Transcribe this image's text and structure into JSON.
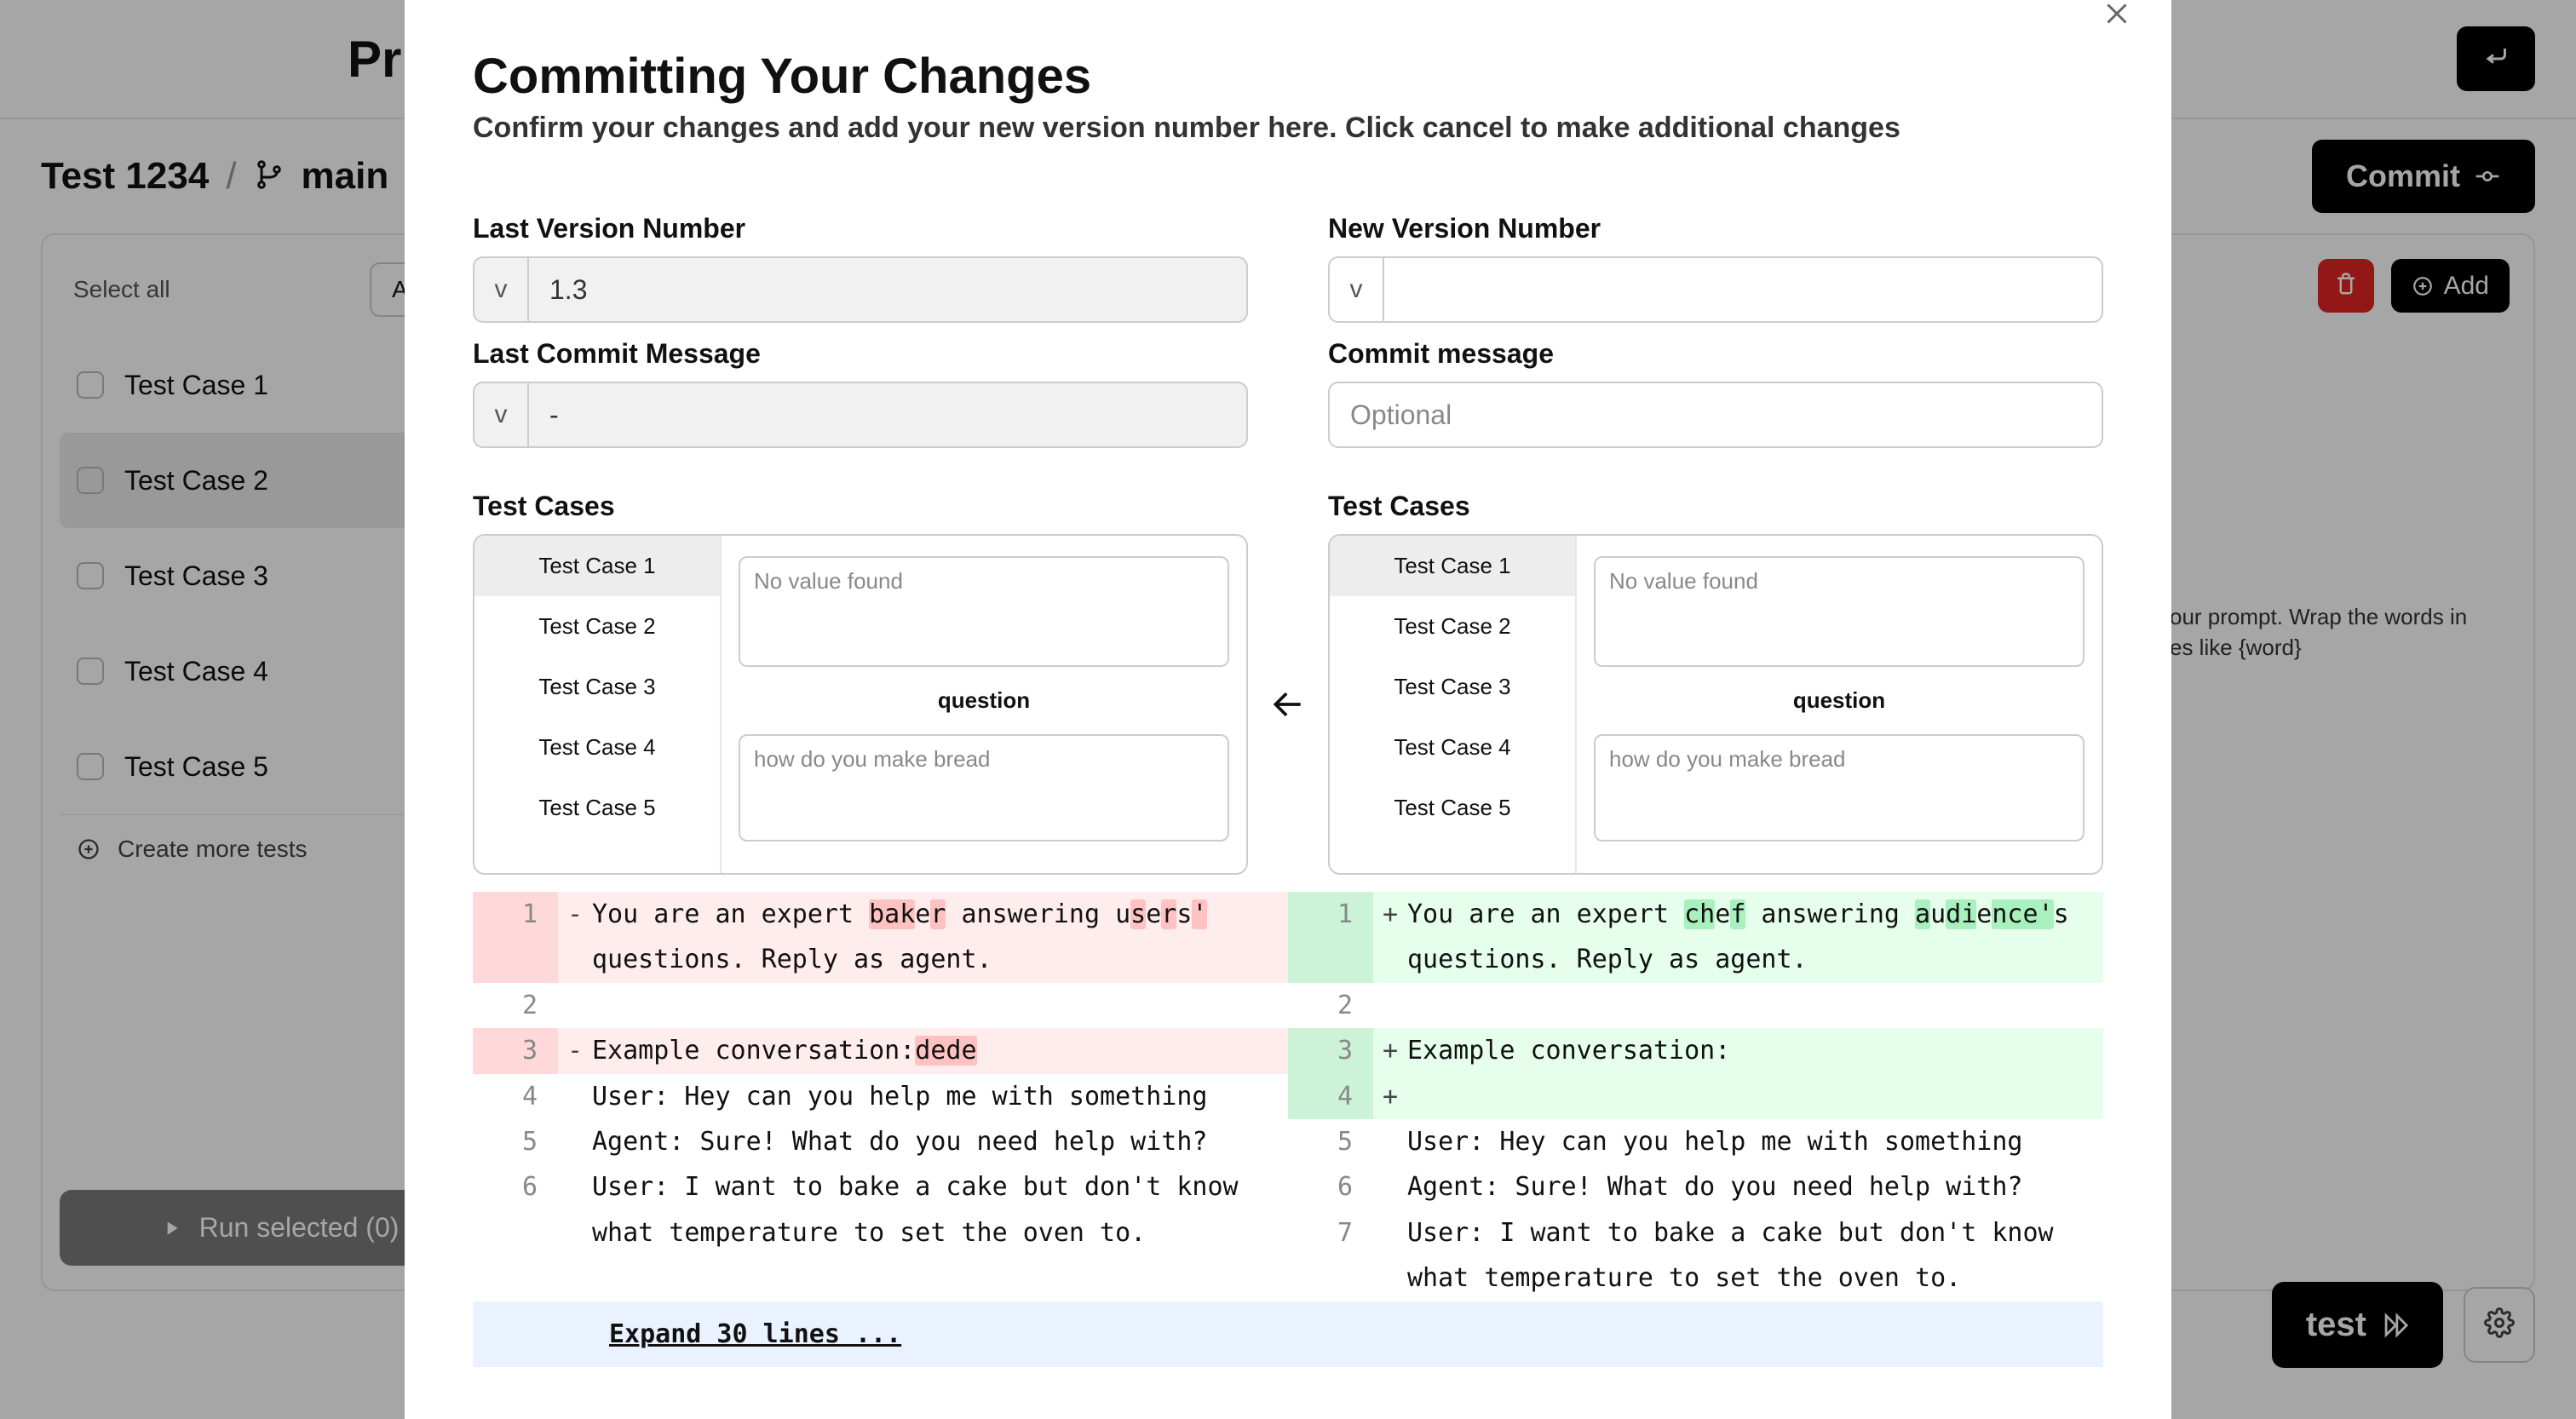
{
  "topbar": {
    "title_fragment": "Pr"
  },
  "breadcrumb": {
    "item1": "Test 1234",
    "sep": "/",
    "branch": "main"
  },
  "commit_button": "Commit",
  "sidebar": {
    "select_all": "Select all",
    "add": "Add",
    "items": [
      "Test Case 1",
      "Test Case 2",
      "Test Case 3",
      "Test Case 4",
      "Test Case 5"
    ],
    "active_index": 1,
    "create_more": "Create more tests",
    "run_selected": "Run selected (0)"
  },
  "right_card": {
    "add": "Add",
    "hint": "your prompt. Wrap the words in ces like {word}"
  },
  "bottom": {
    "run_test": "test"
  },
  "modal": {
    "title": "Committing Your Changes",
    "subtitle": "Confirm your changes and add your new version number here. Click cancel to make additional changes",
    "left": {
      "version_label": "Last Version Number",
      "version_value": "1.3",
      "message_label": "Last Commit Message",
      "message_value": "-",
      "tc_label": "Test Cases"
    },
    "right": {
      "version_label": "New Version Number",
      "version_value": "",
      "message_label": "Commit message",
      "message_placeholder": "Optional",
      "tc_label": "Test Cases"
    },
    "prefix": "v",
    "tc_tabs": [
      "Test Case 1",
      "Test Case 2",
      "Test Case 3",
      "Test Case 4",
      "Test Case 5"
    ],
    "tc_active": 0,
    "no_value": "No value found",
    "question_label": "question",
    "question_value": "how do you make bread",
    "expand": "Expand 30 lines ..."
  },
  "diff": {
    "left": [
      {
        "n": 1,
        "kind": "del",
        "segments": [
          {
            "t": "You are an expert "
          },
          {
            "t": "bak",
            "c": "del"
          },
          {
            "t": "e"
          },
          {
            "t": "r",
            "c": "del"
          },
          {
            "t": " answering u"
          },
          {
            "t": "s",
            "c": "del"
          },
          {
            "t": "e"
          },
          {
            "t": "r",
            "c": "del"
          },
          {
            "t": "s"
          },
          {
            "t": "'",
            "c": "del"
          },
          {
            "t": " questions. Reply as agent."
          }
        ]
      },
      {
        "n": 2,
        "kind": "ctx",
        "segments": [
          {
            "t": ""
          }
        ]
      },
      {
        "n": 3,
        "kind": "del",
        "segments": [
          {
            "t": "Example conversation:"
          },
          {
            "t": "dede",
            "c": "del"
          }
        ]
      },
      {
        "n": 4,
        "kind": "ctx",
        "segments": [
          {
            "t": "User: Hey can you help me with something"
          }
        ]
      },
      {
        "n": 5,
        "kind": "ctx",
        "segments": [
          {
            "t": "Agent: Sure! What do you need help with?"
          }
        ]
      },
      {
        "n": 6,
        "kind": "ctx",
        "segments": [
          {
            "t": "User: I want to bake a cake but don't know what temperature to set the oven to."
          }
        ]
      }
    ],
    "right": [
      {
        "n": 1,
        "kind": "add",
        "segments": [
          {
            "t": "You are an expert "
          },
          {
            "t": "ch",
            "c": "add"
          },
          {
            "t": "e"
          },
          {
            "t": "f",
            "c": "add"
          },
          {
            "t": " answering "
          },
          {
            "t": "a",
            "c": "add"
          },
          {
            "t": "u"
          },
          {
            "t": "di",
            "c": "add"
          },
          {
            "t": "e"
          },
          {
            "t": "nce'",
            "c": "add"
          },
          {
            "t": "s questions. Reply as agent."
          }
        ]
      },
      {
        "n": 2,
        "kind": "ctx",
        "segments": [
          {
            "t": ""
          }
        ]
      },
      {
        "n": 3,
        "kind": "add",
        "segments": [
          {
            "t": "Example conversation:"
          }
        ]
      },
      {
        "n": 4,
        "kind": "add",
        "segments": [
          {
            "t": ""
          }
        ]
      },
      {
        "n": 5,
        "kind": "ctx",
        "segments": [
          {
            "t": "User: Hey can you help me with something"
          }
        ]
      },
      {
        "n": 6,
        "kind": "ctx",
        "segments": [
          {
            "t": "Agent: Sure! What do you need help with?"
          }
        ]
      },
      {
        "n": 7,
        "kind": "ctx",
        "segments": [
          {
            "t": "User: I want to bake a cake but don't know what temperature to set the oven to."
          }
        ]
      }
    ]
  },
  "colors": {
    "del_row": "#ffecec",
    "del_ln": "#ffd9d9",
    "del_chg": "#ffc2c2",
    "add_row": "#e6ffed",
    "add_ln": "#ccf3d8",
    "add_chg": "#a8f0bd",
    "expand_bg": "#eaf2ff",
    "danger": "#e02424"
  }
}
